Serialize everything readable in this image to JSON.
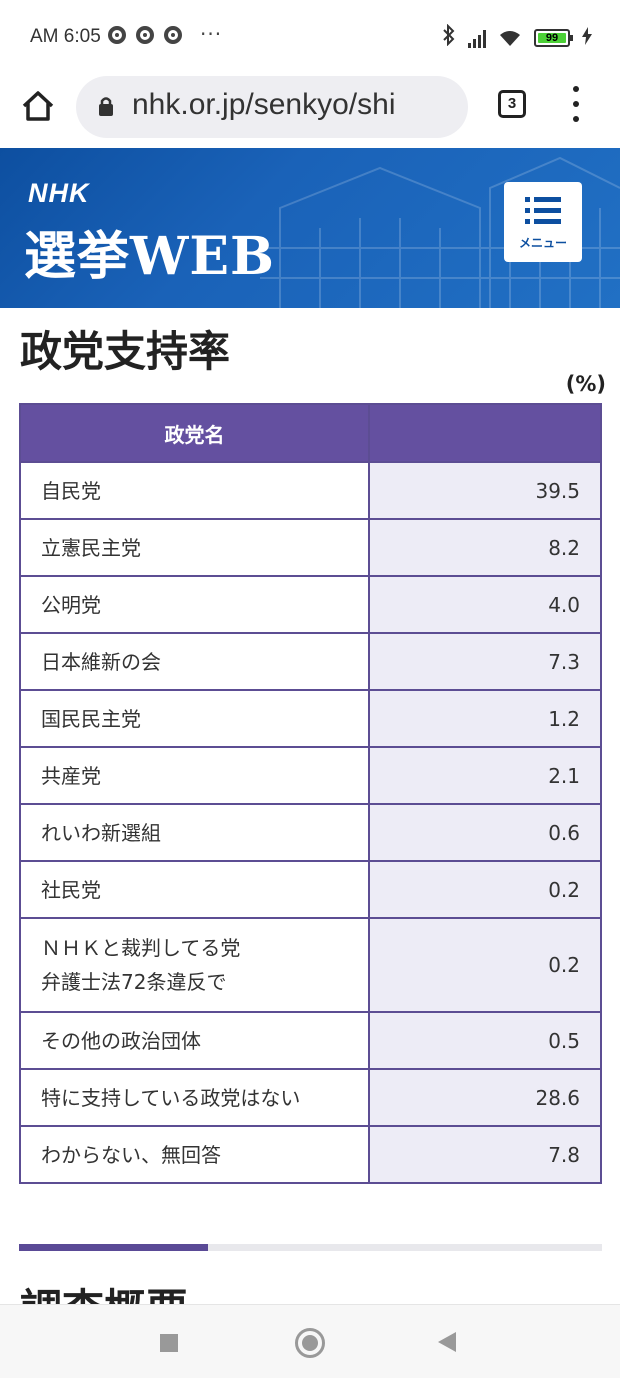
{
  "status_bar": {
    "time": "AM 6:05",
    "more": "···",
    "battery": "99"
  },
  "browser": {
    "url": "nhk.or.jp/senkyo/shi",
    "tab_count": "3"
  },
  "header": {
    "logo": "NHK",
    "title": "選挙WEB",
    "menu_label": "メニュー"
  },
  "main": {
    "title": "政党支持率",
    "unit": "(%)",
    "table": {
      "header_name": "政党名",
      "header_value": "",
      "rows": [
        {
          "name": "自民党",
          "value": "39.5"
        },
        {
          "name": "立憲民主党",
          "value": "8.2"
        },
        {
          "name": "公明党",
          "value": "4.0"
        },
        {
          "name": "日本維新の会",
          "value": "7.3"
        },
        {
          "name": "国民民主党",
          "value": "1.2"
        },
        {
          "name": "共産党",
          "value": "2.1"
        },
        {
          "name": "れいわ新選組",
          "value": "0.6"
        },
        {
          "name": "社民党",
          "value": "0.2"
        },
        {
          "name_line1": "ＮＨＫと裁判してる党",
          "name_line2": "弁護士法72条違反で",
          "value": "0.2"
        },
        {
          "name": "その他の政治団体",
          "value": "0.5"
        },
        {
          "name": "特に支持している政党はない",
          "value": "28.6"
        },
        {
          "name": "わからない、無回答",
          "value": "7.8"
        }
      ]
    },
    "next_section_title": "調査概要"
  },
  "colors": {
    "header_blue": "#1a62b8",
    "table_purple": "#6450a0",
    "value_cell_bg": "#edecf6"
  }
}
